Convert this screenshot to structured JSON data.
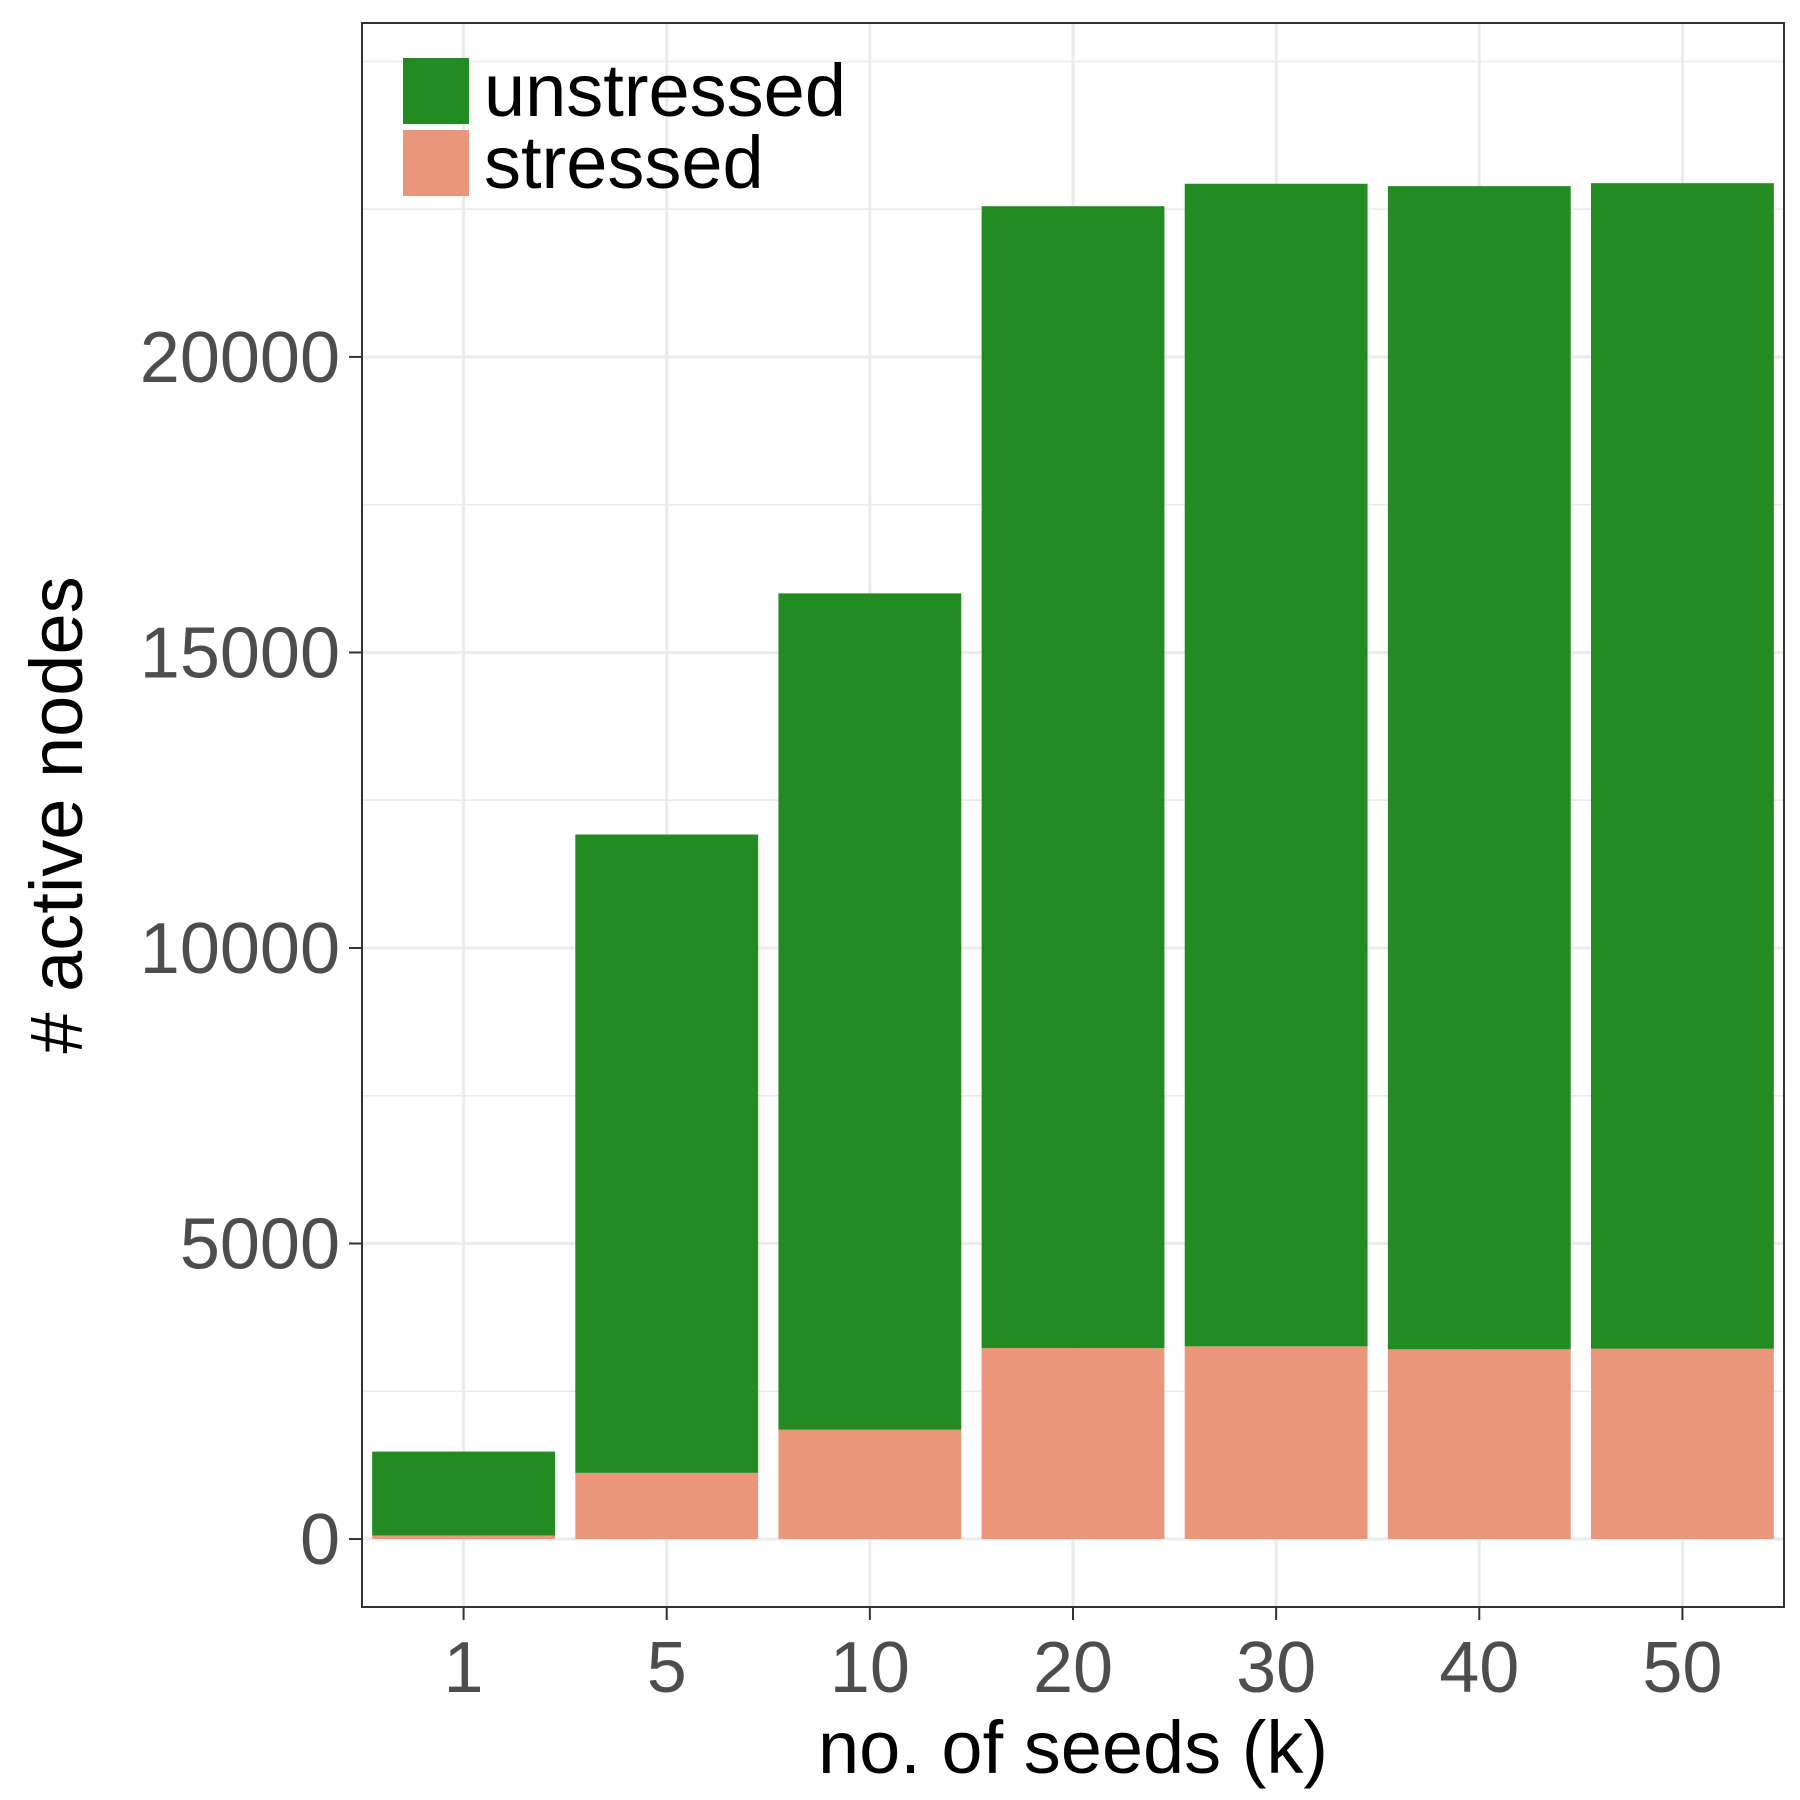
{
  "chart_data": {
    "type": "bar",
    "stacked": true,
    "categories": [
      "1",
      "5",
      "10",
      "20",
      "30",
      "40",
      "50"
    ],
    "series": [
      {
        "name": "stressed",
        "color": "#E9967A",
        "values": [
          60,
          1120,
          1850,
          3230,
          3260,
          3210,
          3220
        ]
      },
      {
        "name": "unstressed",
        "color": "#228B22",
        "values": [
          1420,
          10800,
          14150,
          19320,
          19670,
          19680,
          19720
        ]
      }
    ],
    "totals": [
      1480,
      11920,
      16000,
      22550,
      22930,
      22890,
      22940
    ],
    "xlabel": "no. of seeds (k)",
    "ylabel": "# active nodes",
    "ylim": [
      -1150,
      25650
    ],
    "yticks": [
      0,
      5000,
      10000,
      15000,
      20000
    ],
    "ytick_labels": [
      "0",
      "5000",
      "10000",
      "15000",
      "20000"
    ],
    "grid": true,
    "legend": {
      "position": "top-left",
      "entries": [
        {
          "label": "unstressed",
          "color": "#228B22"
        },
        {
          "label": "stressed",
          "color": "#E9967A"
        }
      ]
    }
  }
}
